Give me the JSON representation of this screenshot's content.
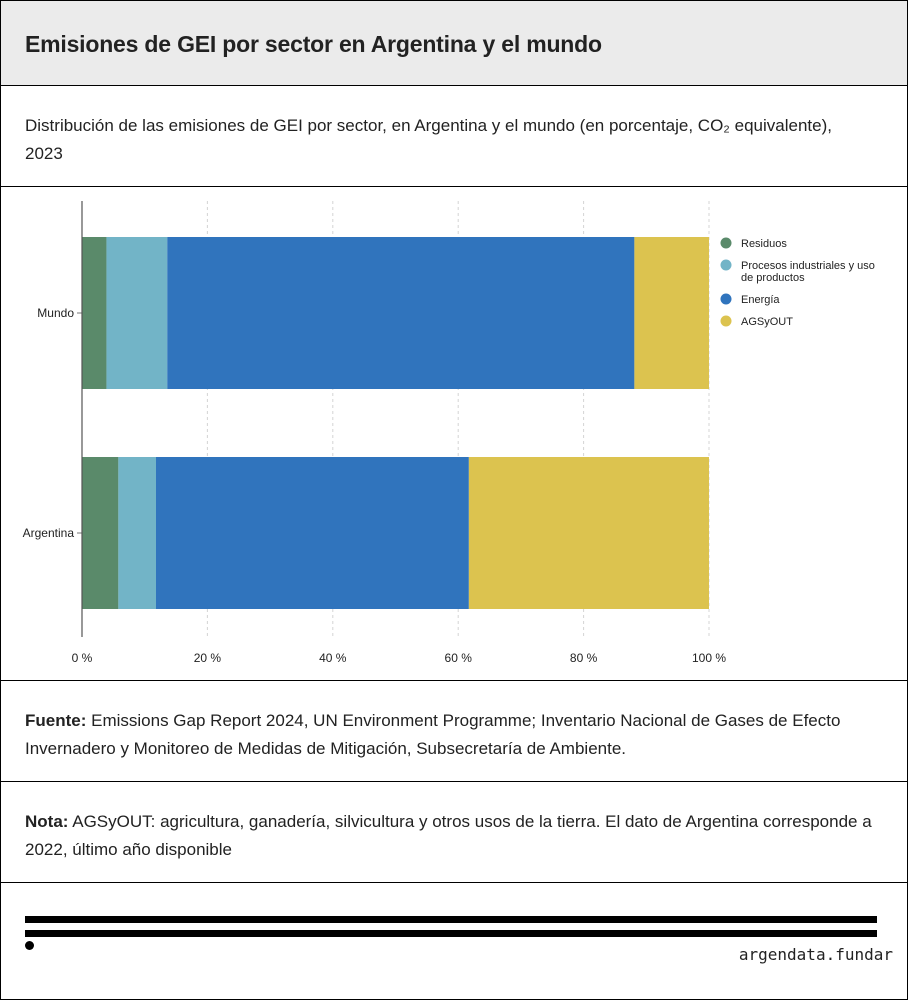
{
  "header": {
    "title": "Emisiones de GEI por sector en Argentina y el mundo"
  },
  "subtitle": "Distribución de las emisiones de GEI por sector, en Argentina y el mundo (en porcentaje, CO₂ equivalente), 2023",
  "source": {
    "label": "Fuente:",
    "text": "Emissions Gap Report 2024, UN Environment Programme; Inventario Nacional de Gases de Efecto Invernadero y Monitoreo de Medidas de Mitigación, Subsecretaría de Ambiente."
  },
  "note": {
    "label": "Nota:",
    "text": "AGSyOUT: agricultura, ganadería, silvicultura y otros usos de la tierra. El dato de Argentina corresponde a 2022, último año disponible"
  },
  "footer": {
    "brand": "argendata.fundar"
  },
  "chart_data": {
    "type": "bar",
    "orientation": "horizontal",
    "stacked": true,
    "categories": [
      "Mundo",
      "Argentina"
    ],
    "series": [
      {
        "name": "Residuos",
        "color": "#5a8a6a",
        "values": [
          3.9,
          5.8
        ]
      },
      {
        "name": "Procesos industriales y uso de productos",
        "color": "#72b4c7",
        "values": [
          9.7,
          6.0
        ]
      },
      {
        "name": "Energía",
        "color": "#3074bd",
        "values": [
          74.5,
          49.9
        ]
      },
      {
        "name": "AGSyOUT",
        "color": "#dcc34f",
        "values": [
          11.9,
          38.3
        ]
      }
    ],
    "xticks": [
      "0 %",
      "20 %",
      "40 %",
      "60 %",
      "80 %",
      "100 %"
    ],
    "xlim": [
      0,
      100
    ],
    "grid": true,
    "legend": "right"
  }
}
